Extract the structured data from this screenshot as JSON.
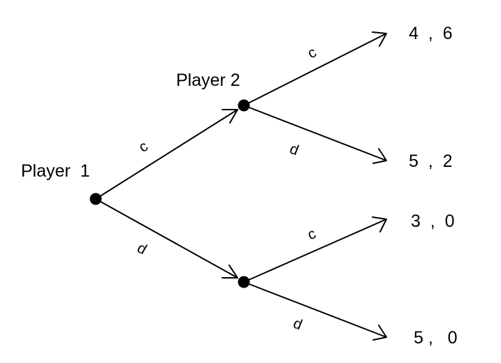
{
  "players": {
    "player1": "Player  1",
    "player2": "Player 2"
  },
  "moves": {
    "p1_c": "c",
    "p1_d": "d",
    "p2_upper_c": "c",
    "p2_upper_d": "d",
    "p2_lower_c": "c",
    "p2_lower_d": "d"
  },
  "payoffs": {
    "cc": "4  ,  6",
    "cd": "5  ,  2",
    "dc": "3  ,  0",
    "dd": "5 ,   0"
  },
  "colors": {
    "ink": "#000000",
    "background": "#ffffff"
  }
}
